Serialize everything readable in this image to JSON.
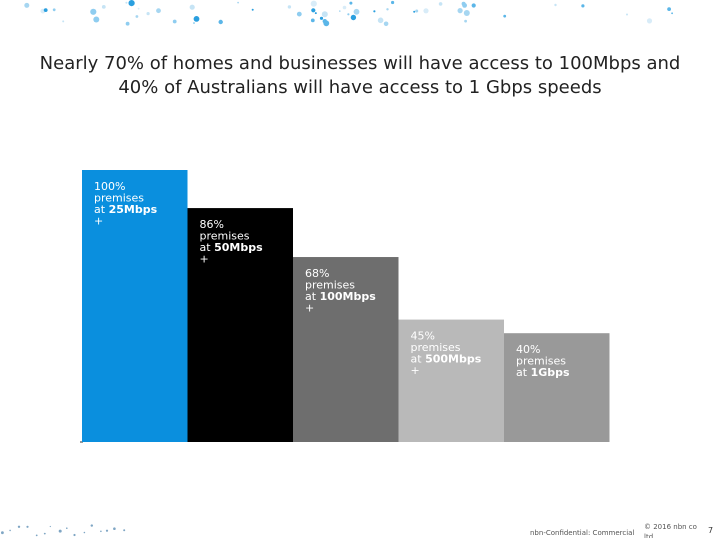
{
  "title": "Nearly 70% of homes and businesses will have access to 100Mbps and 40% of Australians will have access to 1 Gbps speeds",
  "footer": {
    "confidential": "nbn-Confidential: Commercial",
    "copyright": "© 2016 nbn co ltd",
    "page": "7"
  },
  "colors": {
    "bar_1": "#0a8fde",
    "bar_2": "#000000",
    "bar_3": "#6e6e6e",
    "bar_4": "#b9b9b9",
    "bar_5": "#999999"
  },
  "chart_data": {
    "type": "bar",
    "categories": [
      "25Mbps +",
      "50Mbps +",
      "100Mbps +",
      "500Mbps +",
      "1Gbps"
    ],
    "values": [
      100,
      86,
      68,
      45,
      40
    ],
    "unit": "% premises",
    "labels": [
      {
        "l1": "100%",
        "l2": "premises",
        "l3": "at ",
        "bold": "25Mbps",
        "l4": "+"
      },
      {
        "l1": "86%",
        "l2": "premises",
        "l3": "at ",
        "bold": "50Mbps",
        "l4": "+"
      },
      {
        "l1": "68%",
        "l2": "premises",
        "l3": "at ",
        "bold": "100Mbps",
        "l4": "+"
      },
      {
        "l1": "45%",
        "l2": "premises",
        "l3": "at ",
        "bold": "500Mbps",
        "l4": "+"
      },
      {
        "l1": "40%",
        "l2": "premises",
        "l3": "at ",
        "bold": "1Gbps",
        "l4": ""
      }
    ],
    "ylim": [
      0,
      100
    ],
    "grid": false,
    "legend": "none"
  }
}
